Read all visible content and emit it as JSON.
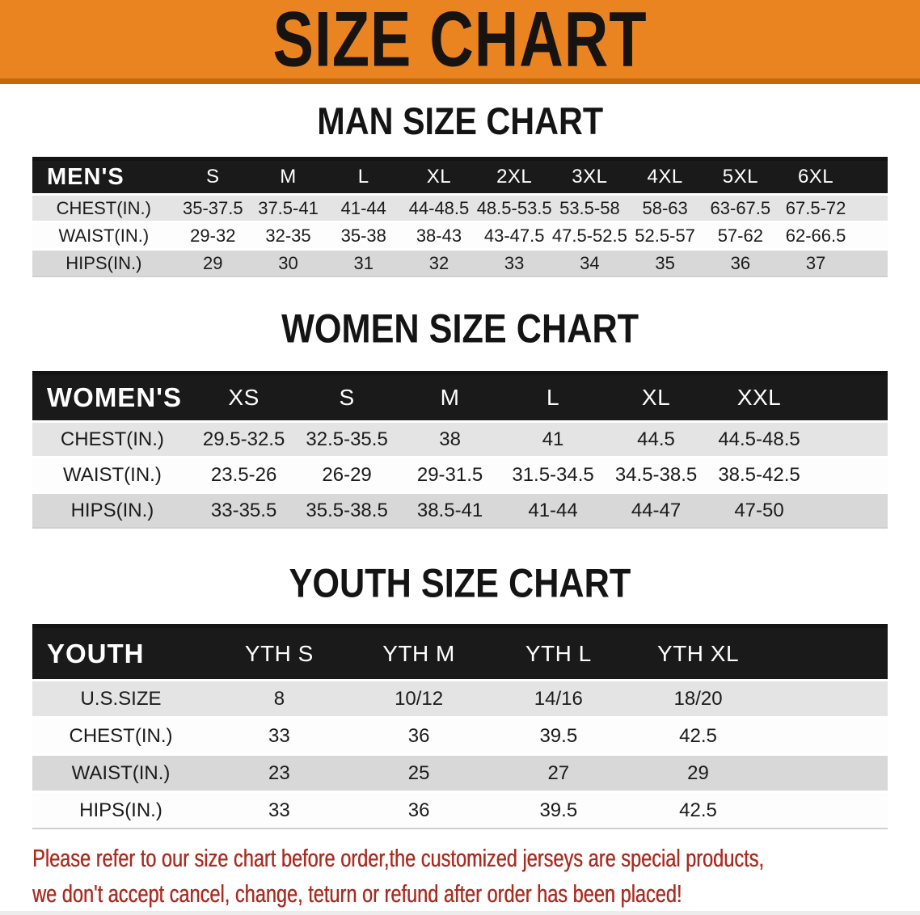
{
  "banner": {
    "title": "SIZE CHART"
  },
  "colors": {
    "banner_bg": "#EA8420",
    "banner_edge": "#C36A10",
    "table_header_bg": "#1A1A1A",
    "stripe_light": "#E4E4E4",
    "stripe_dark": "#D8D8D8",
    "notice_red": "#AC2B20"
  },
  "sections": [
    {
      "heading": "MAN SIZE CHART",
      "table": {
        "header": [
          "MEN'S",
          "S",
          "M",
          "L",
          "XL",
          "2XL",
          "3XL",
          "4XL",
          "5XL",
          "6XL"
        ],
        "rows": [
          {
            "label": "CHEST(IN.)",
            "values": [
              "35-37.5",
              "37.5-41",
              "41-44",
              "44-48.5",
              "48.5-53.5",
              "53.5-58",
              "58-63",
              "63-67.5",
              "67.5-72"
            ]
          },
          {
            "label": "WAIST(IN.)",
            "values": [
              "29-32",
              "32-35",
              "35-38",
              "38-43",
              "43-47.5",
              "47.5-52.5",
              "52.5-57",
              "57-62",
              "62-66.5"
            ]
          },
          {
            "label": "HIPS(IN.)",
            "values": [
              "29",
              "30",
              "31",
              "32",
              "33",
              "34",
              "35",
              "36",
              "37"
            ]
          }
        ]
      }
    },
    {
      "heading": "WOMEN SIZE CHART",
      "table": {
        "header": [
          "WOMEN'S",
          "XS",
          "S",
          "M",
          "L",
          "XL",
          "XXL"
        ],
        "rows": [
          {
            "label": "CHEST(IN.)",
            "values": [
              "29.5-32.5",
              "32.5-35.5",
              "38",
              "41",
              "44.5",
              "44.5-48.5"
            ]
          },
          {
            "label": "WAIST(IN.)",
            "values": [
              "23.5-26",
              "26-29",
              "29-31.5",
              "31.5-34.5",
              "34.5-38.5",
              "38.5-42.5"
            ]
          },
          {
            "label": "HIPS(IN.)",
            "values": [
              "33-35.5",
              "35.5-38.5",
              "38.5-41",
              "41-44",
              "44-47",
              "47-50"
            ]
          }
        ]
      }
    },
    {
      "heading": "YOUTH SIZE CHART",
      "table": {
        "header": [
          "YOUTH",
          "YTH S",
          "YTH M",
          "YTH L",
          "YTH XL"
        ],
        "rows": [
          {
            "label": "U.S.SIZE",
            "values": [
              "8",
              "10/12",
              "14/16",
              "18/20"
            ]
          },
          {
            "label": "CHEST(IN.)",
            "values": [
              "33",
              "36",
              "39.5",
              "42.5"
            ]
          },
          {
            "label": "WAIST(IN.)",
            "values": [
              "23",
              "25",
              "27",
              "29"
            ]
          },
          {
            "label": "HIPS(IN.)",
            "values": [
              "33",
              "36",
              "39.5",
              "42.5"
            ]
          }
        ]
      }
    }
  ],
  "footer": {
    "line1": "Please refer to our size chart before order,the customized jerseys are special products,",
    "line2": "we don't accept cancel, change, teturn or refund after order has been placed!"
  }
}
